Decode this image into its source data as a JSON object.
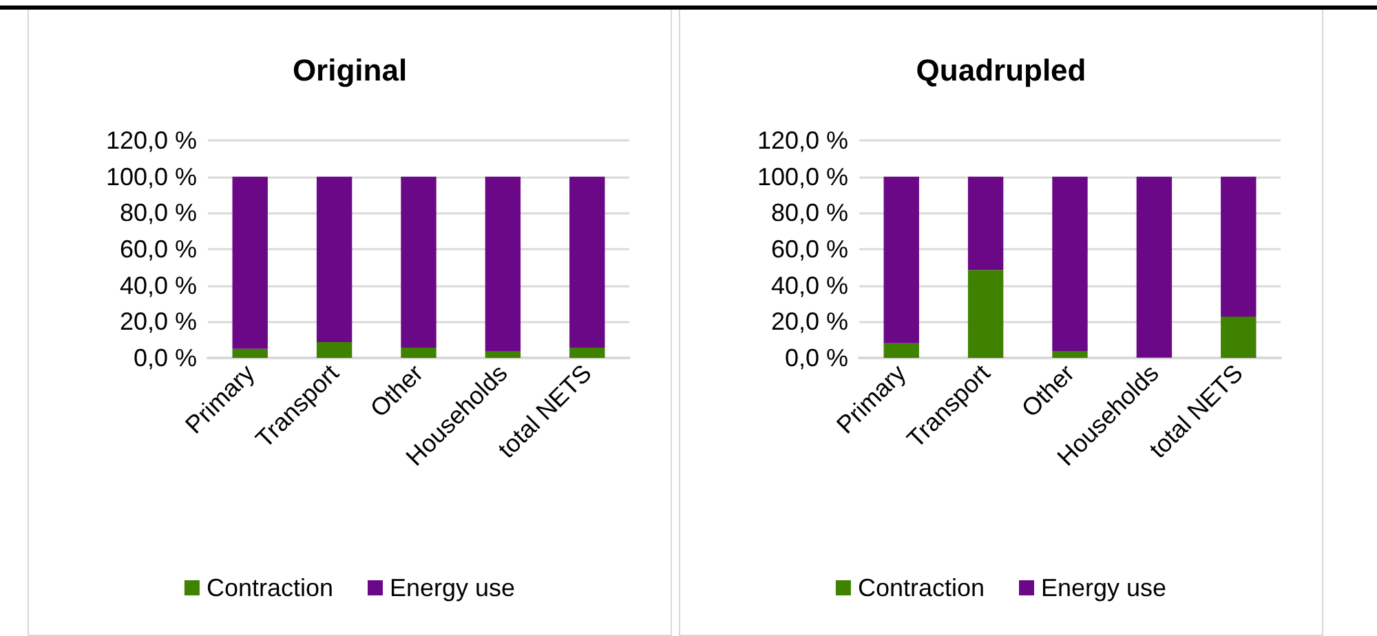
{
  "chart_data": [
    {
      "type": "bar",
      "title": "Original",
      "categories": [
        "Primary",
        "Transport",
        "Other",
        "Households",
        "total NETS"
      ],
      "stacked": true,
      "legend": "bottom",
      "grid": "y",
      "ylim": [
        0,
        120
      ],
      "yticks": [
        {
          "value": 0,
          "label": "0,0 %"
        },
        {
          "value": 20,
          "label": "20,0 %"
        },
        {
          "value": 40,
          "label": "40,0 %"
        },
        {
          "value": 60,
          "label": "60,0 %"
        },
        {
          "value": 80,
          "label": "80,0 %"
        },
        {
          "value": 100,
          "label": "100,0 %"
        },
        {
          "value": 120,
          "label": "120,0 %"
        }
      ],
      "series": [
        {
          "name": "Contraction",
          "color": "#3f8200",
          "values": [
            5.0,
            8.7,
            5.7,
            3.5,
            5.7
          ]
        },
        {
          "name": "Energy use",
          "color": "#6a0888",
          "values": [
            95.0,
            91.3,
            94.3,
            96.5,
            94.3
          ]
        }
      ]
    },
    {
      "type": "bar",
      "title": "Quadrupled",
      "categories": [
        "Primary",
        "Transport",
        "Other",
        "Households",
        "total NETS"
      ],
      "stacked": true,
      "legend": "bottom",
      "grid": "y",
      "ylim": [
        0,
        120
      ],
      "yticks": [
        {
          "value": 0,
          "label": "0,0 %"
        },
        {
          "value": 20,
          "label": "20,0 %"
        },
        {
          "value": 40,
          "label": "40,0 %"
        },
        {
          "value": 60,
          "label": "60,0 %"
        },
        {
          "value": 80,
          "label": "80,0 %"
        },
        {
          "value": 100,
          "label": "100,0 %"
        },
        {
          "value": 120,
          "label": "120,0 %"
        }
      ],
      "series": [
        {
          "name": "Contraction",
          "color": "#3f8200",
          "values": [
            8.1,
            48.5,
            3.8,
            0.3,
            22.8
          ]
        },
        {
          "name": "Energy use",
          "color": "#6a0888",
          "values": [
            91.9,
            51.5,
            96.2,
            99.7,
            77.2
          ]
        }
      ]
    }
  ]
}
